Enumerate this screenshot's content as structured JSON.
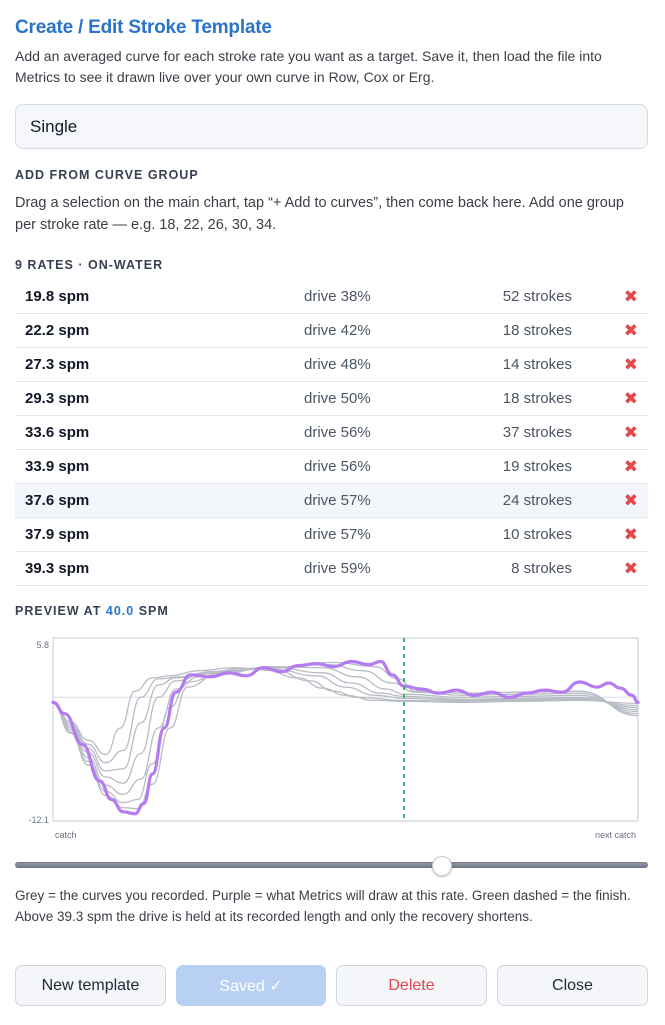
{
  "header": {
    "title": "Create / Edit Stroke Template",
    "intro": "Add an averaged curve for each stroke rate you want as a target. Save it, then load the file into Metrics to see it drawn live over your own curve in Row, Cox or Erg."
  },
  "template_name": {
    "value": "Single"
  },
  "add_group": {
    "heading": "ADD FROM CURVE GROUP",
    "help": "Drag a selection on the main chart, tap “+ Add to curves”, then come back here. Add one group per stroke rate — e.g. 18, 22, 26, 30, 34."
  },
  "rates": {
    "heading": "9 RATES · ON-WATER",
    "delete_glyph": "✖",
    "items": [
      {
        "spm": "19.8 spm",
        "drive": "drive 38%",
        "strokes": "52 strokes"
      },
      {
        "spm": "22.2 spm",
        "drive": "drive 42%",
        "strokes": "18 strokes"
      },
      {
        "spm": "27.3 spm",
        "drive": "drive 48%",
        "strokes": "14 strokes"
      },
      {
        "spm": "29.3 spm",
        "drive": "drive 50%",
        "strokes": "18 strokes"
      },
      {
        "spm": "33.6 spm",
        "drive": "drive 56%",
        "strokes": "37 strokes"
      },
      {
        "spm": "33.9 spm",
        "drive": "drive 56%",
        "strokes": "19 strokes"
      },
      {
        "spm": "37.6 spm",
        "drive": "drive 57%",
        "strokes": "24 strokes"
      },
      {
        "spm": "37.9 spm",
        "drive": "drive 57%",
        "strokes": "10 strokes"
      },
      {
        "spm": "39.3 spm",
        "drive": "drive 59%",
        "strokes": "8 strokes"
      }
    ]
  },
  "preview": {
    "label_prefix": "PREVIEW AT",
    "rate_value": "40.0",
    "label_suffix": "SPM",
    "slider_fraction": 0.68
  },
  "chart_data": {
    "type": "line",
    "y_top_label": "5.8",
    "y_bottom_label": "-12.1",
    "ylim": [
      -12.1,
      5.8
    ],
    "xlim": [
      0,
      1
    ],
    "x_left_label": "catch",
    "x_right_label": "next catch",
    "finish_x": 0.6,
    "colors": {
      "recorded": "#b8bcc4",
      "target": "#b47cf0",
      "finish": "#2fb25a",
      "frame": "#d7dde6"
    },
    "series": [
      {
        "values": [
          [
            0,
            -0.5
          ],
          [
            0.03,
            -2.4
          ],
          [
            0.06,
            -4.2
          ],
          [
            0.09,
            -5.6
          ],
          [
            0.115,
            -3.0
          ],
          [
            0.14,
            0.6
          ],
          [
            0.17,
            1.9
          ],
          [
            0.2,
            2.1
          ],
          [
            0.25,
            2.6
          ],
          [
            0.31,
            2.9
          ],
          [
            0.36,
            2.7
          ],
          [
            0.42,
            1.9
          ],
          [
            0.46,
            0.9
          ],
          [
            0.5,
            0.2
          ],
          [
            0.55,
            -0.3
          ],
          [
            0.6,
            -0.4
          ],
          [
            0.7,
            -0.5
          ],
          [
            0.8,
            -0.4
          ],
          [
            0.9,
            -0.3
          ],
          [
            1,
            -0.6
          ]
        ]
      },
      {
        "values": [
          [
            0,
            -0.5
          ],
          [
            0.03,
            -2.6
          ],
          [
            0.06,
            -4.6
          ],
          [
            0.09,
            -6.4
          ],
          [
            0.12,
            -5.2
          ],
          [
            0.15,
            0.0
          ],
          [
            0.18,
            1.8
          ],
          [
            0.22,
            2.0
          ],
          [
            0.27,
            2.5
          ],
          [
            0.33,
            2.8
          ],
          [
            0.38,
            2.6
          ],
          [
            0.44,
            1.6
          ],
          [
            0.48,
            0.6
          ],
          [
            0.52,
            0.0
          ],
          [
            0.6,
            -0.3
          ],
          [
            0.7,
            -0.4
          ],
          [
            0.8,
            -0.3
          ],
          [
            0.9,
            -0.2
          ],
          [
            1,
            -0.8
          ]
        ]
      },
      {
        "values": [
          [
            0,
            -0.5
          ],
          [
            0.03,
            -2.8
          ],
          [
            0.06,
            -5.0
          ],
          [
            0.09,
            -7.2
          ],
          [
            0.12,
            -7.0
          ],
          [
            0.15,
            -2.5
          ],
          [
            0.18,
            1.2
          ],
          [
            0.21,
            1.9
          ],
          [
            0.26,
            2.4
          ],
          [
            0.32,
            2.8
          ],
          [
            0.38,
            2.7
          ],
          [
            0.45,
            2.1
          ],
          [
            0.5,
            1.0
          ],
          [
            0.55,
            0.2
          ],
          [
            0.6,
            -0.1
          ],
          [
            0.7,
            -0.3
          ],
          [
            0.8,
            -0.2
          ],
          [
            0.9,
            -0.1
          ],
          [
            1,
            -1.0
          ]
        ]
      },
      {
        "values": [
          [
            0,
            -0.6
          ],
          [
            0.03,
            -3.0
          ],
          [
            0.06,
            -5.4
          ],
          [
            0.09,
            -7.8
          ],
          [
            0.12,
            -8.4
          ],
          [
            0.15,
            -5.5
          ],
          [
            0.18,
            0.0
          ],
          [
            0.21,
            1.6
          ],
          [
            0.26,
            2.3
          ],
          [
            0.32,
            2.8
          ],
          [
            0.38,
            2.9
          ],
          [
            0.46,
            2.4
          ],
          [
            0.51,
            1.4
          ],
          [
            0.56,
            0.4
          ],
          [
            0.6,
            0.1
          ],
          [
            0.7,
            -0.2
          ],
          [
            0.8,
            -0.1
          ],
          [
            0.9,
            0.0
          ],
          [
            1,
            -1.2
          ]
        ]
      },
      {
        "values": [
          [
            0,
            -0.6
          ],
          [
            0.03,
            -3.2
          ],
          [
            0.06,
            -5.9
          ],
          [
            0.09,
            -8.6
          ],
          [
            0.12,
            -9.5
          ],
          [
            0.15,
            -8.0
          ],
          [
            0.18,
            -3.0
          ],
          [
            0.21,
            0.8
          ],
          [
            0.25,
            2.0
          ],
          [
            0.31,
            2.6
          ],
          [
            0.37,
            3.0
          ],
          [
            0.46,
            2.9
          ],
          [
            0.52,
            2.0
          ],
          [
            0.57,
            0.8
          ],
          [
            0.6,
            0.3
          ],
          [
            0.7,
            0.0
          ],
          [
            0.8,
            0.1
          ],
          [
            0.9,
            0.2
          ],
          [
            1,
            -1.4
          ]
        ]
      },
      {
        "values": [
          [
            0,
            -0.6
          ],
          [
            0.03,
            -3.4
          ],
          [
            0.06,
            -6.3
          ],
          [
            0.09,
            -9.2
          ],
          [
            0.12,
            -10.3
          ],
          [
            0.145,
            -10.0
          ],
          [
            0.17,
            -6.5
          ],
          [
            0.2,
            -1.0
          ],
          [
            0.23,
            1.5
          ],
          [
            0.29,
            2.4
          ],
          [
            0.36,
            2.9
          ],
          [
            0.47,
            3.2
          ],
          [
            0.53,
            2.6
          ],
          [
            0.58,
            1.4
          ],
          [
            0.62,
            0.5
          ],
          [
            0.7,
            0.2
          ],
          [
            0.8,
            0.3
          ],
          [
            0.9,
            0.4
          ],
          [
            1,
            -1.6
          ]
        ]
      },
      {
        "values": [
          [
            0,
            -0.6
          ],
          [
            0.03,
            -3.5
          ],
          [
            0.06,
            -6.6
          ],
          [
            0.09,
            -9.6
          ],
          [
            0.12,
            -10.8
          ],
          [
            0.145,
            -10.9
          ],
          [
            0.17,
            -8.5
          ],
          [
            0.2,
            -3.0
          ],
          [
            0.23,
            1.0
          ],
          [
            0.28,
            2.2
          ],
          [
            0.36,
            2.8
          ],
          [
            0.48,
            3.4
          ],
          [
            0.55,
            3.0
          ],
          [
            0.59,
            1.8
          ],
          [
            0.62,
            0.6
          ],
          [
            0.7,
            0.4
          ],
          [
            0.8,
            0.5
          ],
          [
            0.9,
            0.6
          ],
          [
            1,
            -1.8
          ]
        ]
      }
    ],
    "target": {
      "values": [
        [
          0,
          -0.5
        ],
        [
          0.02,
          -1.6
        ],
        [
          0.05,
          -4.6
        ],
        [
          0.08,
          -8.2
        ],
        [
          0.1,
          -10.0
        ],
        [
          0.12,
          -11.2
        ],
        [
          0.14,
          -11.4
        ],
        [
          0.155,
          -10.4
        ],
        [
          0.17,
          -7.5
        ],
        [
          0.19,
          -3.0
        ],
        [
          0.21,
          0.5
        ],
        [
          0.235,
          2.2
        ],
        [
          0.27,
          2.0
        ],
        [
          0.3,
          2.4
        ],
        [
          0.33,
          2.1
        ],
        [
          0.36,
          2.9
        ],
        [
          0.39,
          2.5
        ],
        [
          0.42,
          3.1
        ],
        [
          0.45,
          3.3
        ],
        [
          0.48,
          3.0
        ],
        [
          0.51,
          3.5
        ],
        [
          0.54,
          3.2
        ],
        [
          0.56,
          3.5
        ],
        [
          0.58,
          2.2
        ],
        [
          0.6,
          1.1
        ],
        [
          0.63,
          0.8
        ],
        [
          0.66,
          0.4
        ],
        [
          0.69,
          0.7
        ],
        [
          0.72,
          0.2
        ],
        [
          0.75,
          0.5
        ],
        [
          0.78,
          0.0
        ],
        [
          0.81,
          0.4
        ],
        [
          0.84,
          0.7
        ],
        [
          0.87,
          0.5
        ],
        [
          0.9,
          1.5
        ],
        [
          0.93,
          1.0
        ],
        [
          0.95,
          1.4
        ],
        [
          0.97,
          0.9
        ],
        [
          0.99,
          0.2
        ],
        [
          1,
          -0.5
        ]
      ]
    }
  },
  "note": "Grey = the curves you recorded. Purple = what Metrics will draw at this rate. Green dashed = the finish. Above 39.3 spm the drive is held at its recorded length and only the recovery shortens.",
  "buttons": {
    "new_template": "New template",
    "saved": "Saved ✓",
    "delete": "Delete",
    "close": "Close"
  }
}
